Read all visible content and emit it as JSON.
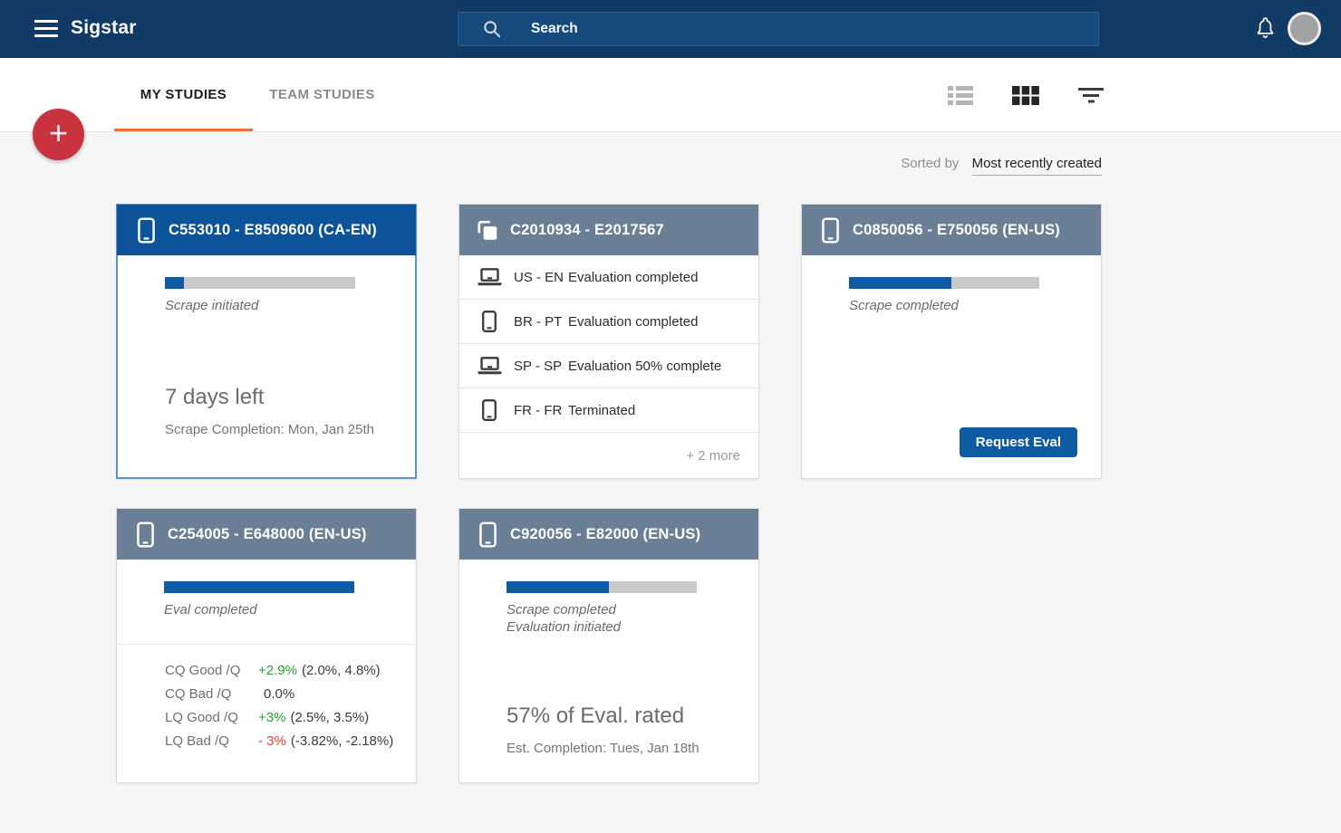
{
  "navbar": {
    "brand": "Sigstar",
    "search": {
      "placeholder": "Search"
    }
  },
  "tabs": {
    "my_studies": "MY STUDIES",
    "team_studies": "TEAM STUDIES"
  },
  "toolbar": {
    "sorted_by_label": "Sorted by",
    "sort_value": "Most recently created"
  },
  "colors": {
    "navbar_bg": "#113a64",
    "accent_orange": "#e8703a",
    "fab_red": "#c93340",
    "primary_blue": "#0d5399",
    "slate_header": "#6a7f95",
    "progress_blue": "#0f5ba3",
    "positive_green": "#23a42f",
    "negative_red": "#ef3b30"
  },
  "fab": {
    "label": "+"
  },
  "cards": [
    {
      "title": "C553010 - E8509600 (CA-EN)",
      "device": "phone",
      "selected": true,
      "progress_pct": 10,
      "status_lines": [
        "Scrape initiated"
      ],
      "headline": "7 days left",
      "subline": "Scrape Completion:  Mon, Jan 25th"
    },
    {
      "title": "C2010934 - E2017567",
      "device": "multi",
      "rows": [
        {
          "device": "laptop",
          "locale": "US - EN",
          "status": "Evaluation completed"
        },
        {
          "device": "phone",
          "locale": "BR - PT",
          "status": "Evaluation completed"
        },
        {
          "device": "laptop",
          "locale": "SP - SP",
          "status": "Evaluation 50% complete"
        },
        {
          "device": "phone",
          "locale": "FR - FR",
          "status": "Terminated"
        }
      ],
      "more_label": "+ 2 more"
    },
    {
      "title": "C0850056 - E750056 (EN-US)",
      "device": "phone",
      "progress_pct": 54,
      "status_lines": [
        "Scrape completed"
      ],
      "button_label": "Request Eval"
    },
    {
      "title": "C254005 - E648000 (EN-US)",
      "device": "phone",
      "progress_pct": 100,
      "status_lines": [
        "Eval completed"
      ],
      "stats": [
        {
          "label": "CQ Good /Q",
          "value": "+2.9%",
          "trend": "up",
          "range": "(2.0%, 4.8%)"
        },
        {
          "label": "CQ Bad /Q",
          "value": "0.0%",
          "trend": "flat",
          "range": ""
        },
        {
          "label": "LQ Good /Q",
          "value": "+3%",
          "trend": "up",
          "range": "(2.5%, 3.5%)"
        },
        {
          "label": "LQ Bad /Q",
          "value": "- 3%",
          "trend": "down",
          "range": "(-3.82%, -2.18%)"
        }
      ]
    },
    {
      "title": "C920056 - E82000 (EN-US)",
      "device": "phone",
      "progress_pct": 54,
      "status_lines": [
        "Scrape completed",
        "Evaluation initiated"
      ],
      "headline": "57% of Eval. rated",
      "subline": "Est. Completion:  Tues, Jan 18th"
    }
  ]
}
